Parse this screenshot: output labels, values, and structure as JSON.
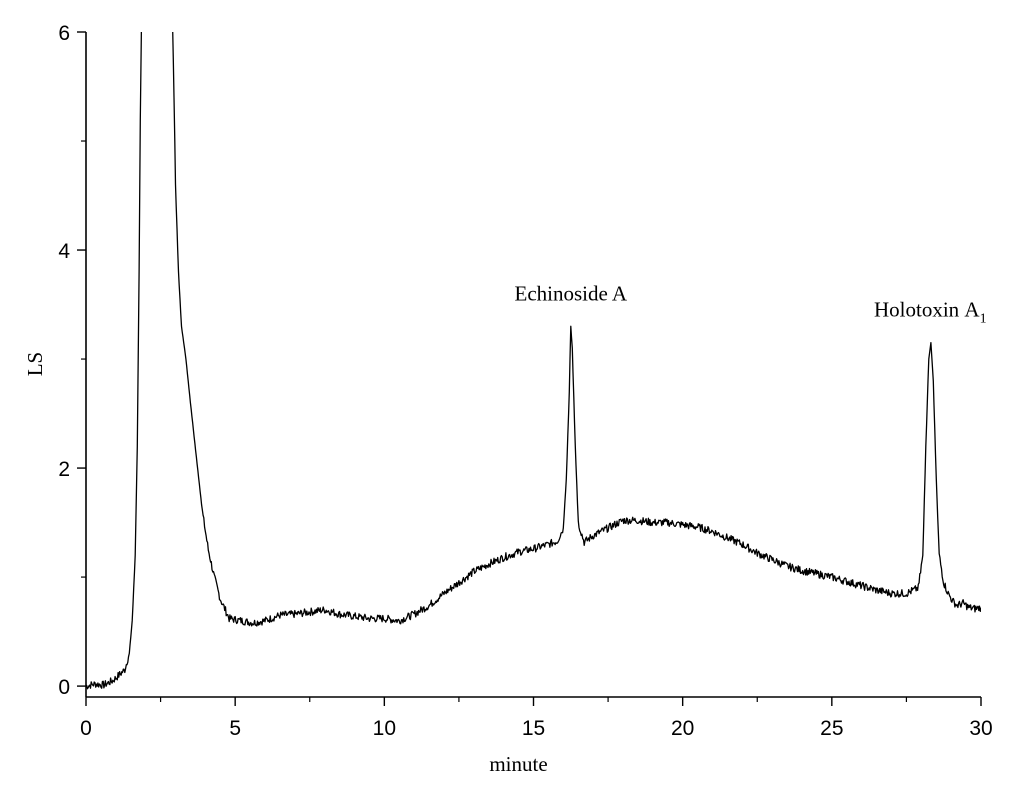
{
  "chart_data": {
    "type": "line",
    "title": "",
    "xlabel": "minute",
    "ylabel": "LS",
    "xlim": [
      0,
      30
    ],
    "ylim": [
      -0.1,
      6
    ],
    "x_ticks": [
      "0",
      "5",
      "10",
      "15",
      "20",
      "25",
      "30"
    ],
    "y_ticks": [
      "0",
      "2",
      "4",
      "6"
    ],
    "grid": false,
    "line_color": "#000000",
    "series": [
      {
        "x": [
          0,
          0.3,
          0.6,
          0.9,
          1.1,
          1.3,
          1.45,
          1.55,
          1.65,
          1.72,
          1.78,
          1.82,
          1.86,
          1.9,
          2.9,
          2.95,
          3.0,
          3.1,
          3.2,
          3.35,
          3.5,
          3.7,
          3.9,
          4.1,
          4.3,
          4.5,
          4.8,
          5.2,
          5.6,
          6.0,
          6.5,
          7.0,
          7.5,
          8.0,
          8.5,
          9.0,
          9.5,
          10.0,
          10.5,
          11.0,
          11.5,
          12.0,
          12.5,
          13.0,
          13.5,
          14.0,
          14.5,
          15.0,
          15.5,
          15.8,
          16.0,
          16.1,
          16.2,
          16.25,
          16.3,
          16.4,
          16.5,
          16.7,
          17.0,
          17.5,
          18.0,
          18.5,
          19.0,
          19.5,
          20.0,
          20.5,
          21.0,
          21.5,
          22.0,
          22.5,
          23.0,
          23.5,
          24.0,
          24.5,
          25.0,
          25.5,
          26.0,
          26.5,
          27.0,
          27.5,
          27.9,
          28.05,
          28.15,
          28.25,
          28.32,
          28.4,
          28.5,
          28.6,
          28.75,
          28.9,
          29.05,
          29.2,
          29.4,
          29.6,
          29.8,
          30.0
        ],
        "values": [
          0.0,
          0.02,
          0.01,
          0.05,
          0.1,
          0.15,
          0.3,
          0.6,
          1.2,
          2.2,
          3.8,
          5.2,
          6.1,
          6.1,
          6.1,
          5.4,
          4.6,
          3.8,
          3.3,
          3.0,
          2.6,
          2.1,
          1.6,
          1.25,
          1.0,
          0.8,
          0.62,
          0.6,
          0.58,
          0.6,
          0.65,
          0.66,
          0.68,
          0.7,
          0.66,
          0.64,
          0.62,
          0.62,
          0.6,
          0.66,
          0.74,
          0.85,
          0.95,
          1.05,
          1.12,
          1.18,
          1.23,
          1.26,
          1.3,
          1.33,
          1.45,
          1.9,
          2.7,
          3.3,
          3.1,
          2.2,
          1.5,
          1.32,
          1.38,
          1.45,
          1.52,
          1.52,
          1.5,
          1.5,
          1.48,
          1.46,
          1.42,
          1.36,
          1.3,
          1.22,
          1.16,
          1.1,
          1.06,
          1.03,
          1.0,
          0.96,
          0.92,
          0.88,
          0.85,
          0.85,
          0.9,
          1.2,
          2.2,
          3.0,
          3.15,
          2.8,
          1.9,
          1.2,
          0.95,
          0.85,
          0.78,
          0.74,
          0.76,
          0.72,
          0.71,
          0.72
        ]
      }
    ],
    "annotations": [
      {
        "id": "peak-label-echinoside-a",
        "text": "Echinoside A",
        "x": 16.25,
        "y": 3.3
      },
      {
        "id": "peak-label-holotoxin-a1",
        "text": "Holotoxin Α",
        "subscript": "1",
        "x": 28.3,
        "y": 3.15
      }
    ]
  }
}
